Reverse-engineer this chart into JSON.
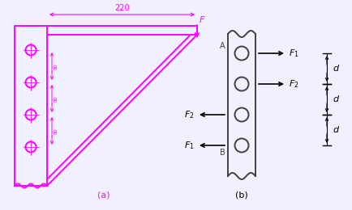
{
  "background_color": "#f0f0ff",
  "magenta": "#FF00FF",
  "black": "#000000",
  "gray": "#808080",
  "dark_gray": "#404040",
  "label_a": "(a)",
  "label_b": "(b)",
  "dim_220": "220",
  "dim_F": "F",
  "rivet_label_A": "A",
  "rivet_label_B": "B",
  "d_labels": [
    "d",
    "d",
    "d"
  ]
}
